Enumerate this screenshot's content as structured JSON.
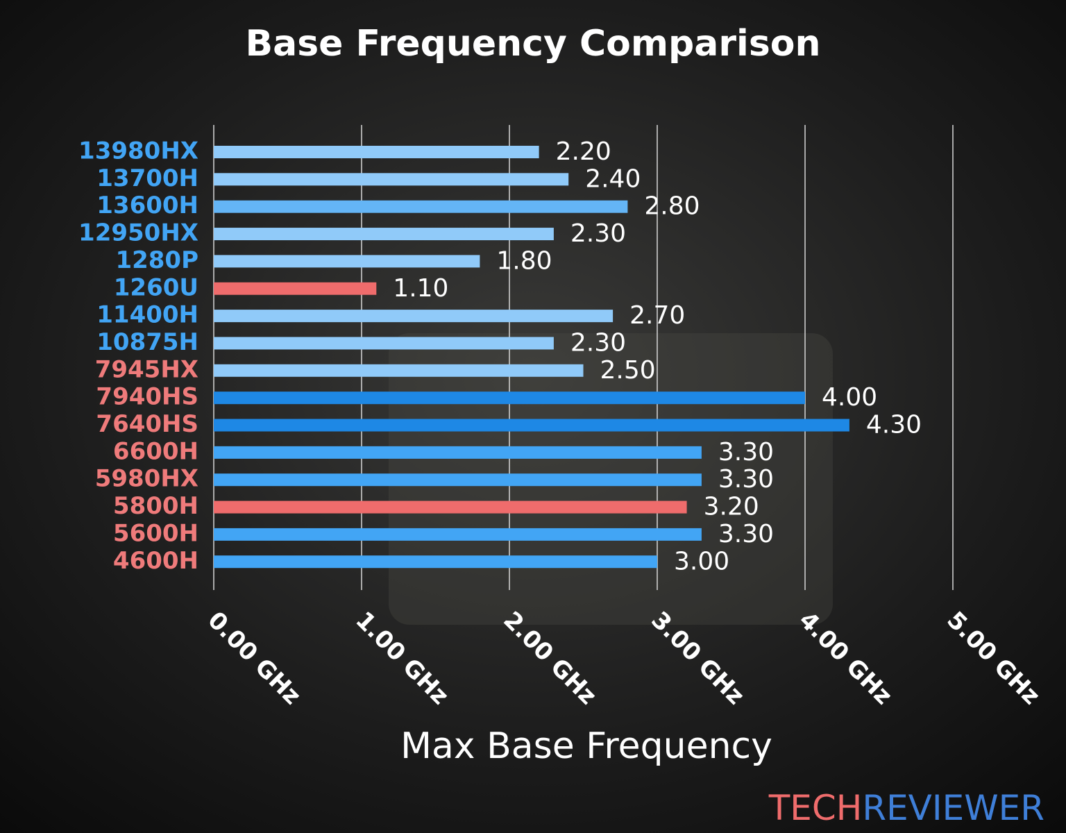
{
  "chart_data": {
    "type": "bar",
    "orientation": "horizontal",
    "title": "Base Frequency Comparison",
    "x_label": "Max Base Frequency",
    "categories": [
      "13980HX",
      "13700H",
      "13600H",
      "12950HX",
      "1280P",
      "1260U",
      "11400H",
      "10875H",
      "7945HX",
      "7940HS",
      "7640HS",
      "6600H",
      "5980HX",
      "5800H",
      "5600H",
      "4600H"
    ],
    "category_colors": [
      "#42a5f5",
      "#42a5f5",
      "#42a5f5",
      "#42a5f5",
      "#42a5f5",
      "#42a5f5",
      "#42a5f5",
      "#42a5f5",
      "#ef7b7b",
      "#ef7b7b",
      "#ef7b7b",
      "#ef7b7b",
      "#ef7b7b",
      "#ef7b7b",
      "#ef7b7b",
      "#ef7b7b"
    ],
    "values": [
      2.2,
      2.4,
      2.8,
      2.3,
      1.8,
      1.1,
      2.7,
      2.3,
      2.5,
      4.0,
      4.3,
      3.3,
      3.3,
      3.2,
      3.3,
      3.0
    ],
    "value_labels": [
      "2.20",
      "2.40",
      "2.80",
      "2.30",
      "1.80",
      "1.10",
      "2.70",
      "2.30",
      "2.50",
      "4.00",
      "4.30",
      "3.30",
      "3.30",
      "3.20",
      "3.30",
      "3.00"
    ],
    "colors": [
      "#90caf9",
      "#90caf9",
      "#64b5f6",
      "#90caf9",
      "#90caf9",
      "#ef6c6c",
      "#90caf9",
      "#90caf9",
      "#90caf9",
      "#1e88e5",
      "#1e88e5",
      "#42a5f5",
      "#42a5f5",
      "#ef6c6c",
      "#42a5f5",
      "#42a5f5"
    ],
    "xlim": [
      0,
      5
    ],
    "xticks": [
      {
        "value": 0,
        "label": "0.00 GHz"
      },
      {
        "value": 1,
        "label": "1.00 GHz"
      },
      {
        "value": 2,
        "label": "2.00 GHz"
      },
      {
        "value": 3,
        "label": "3.00 GHz"
      },
      {
        "value": 4,
        "label": "4.00 GHz"
      },
      {
        "value": 5,
        "label": "5.00 GHz"
      }
    ],
    "grid": true
  },
  "watermark": {
    "tech": "TECH",
    "reviewer": "REVIEWER"
  }
}
